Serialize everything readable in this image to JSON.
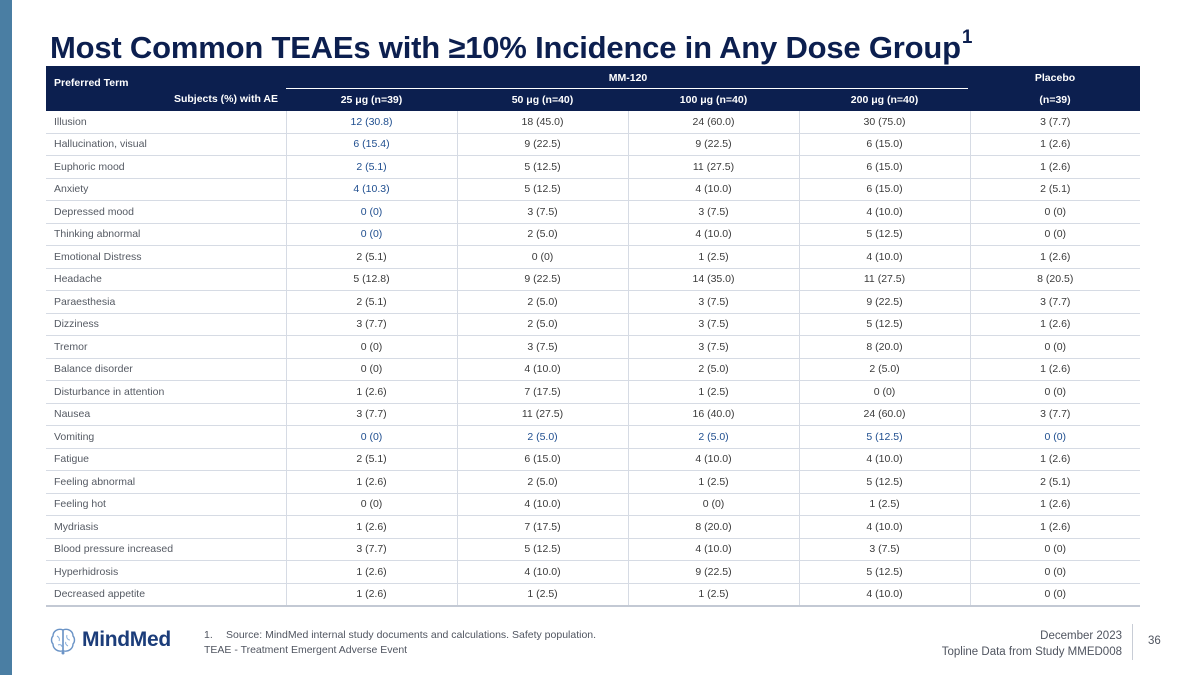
{
  "title": "Most Common TEAEs with ≥10% Incidence in Any Dose Group",
  "title_footnote": "1",
  "table": {
    "corner_label": "Preferred Term",
    "corner_sublabel": "Subjects (%) with AE",
    "group_label": "MM-120",
    "placebo_label": "Placebo",
    "columns": [
      "25 μg (n=39)",
      "50 μg (n=40)",
      "100 μg (n=40)",
      "200 μg (n=40)",
      "(n=39)"
    ],
    "rows": [
      {
        "term": "Illusion",
        "values": [
          "12 (30.8)",
          "18 (45.0)",
          "24 (60.0)",
          "30 (75.0)",
          "3 (7.7)"
        ]
      },
      {
        "term": "Hallucination, visual",
        "values": [
          "6 (15.4)",
          "9 (22.5)",
          "9 (22.5)",
          "6 (15.0)",
          "1 (2.6)"
        ]
      },
      {
        "term": "Euphoric mood",
        "values": [
          "2 (5.1)",
          "5 (12.5)",
          "11 (27.5)",
          "6 (15.0)",
          "1 (2.6)"
        ]
      },
      {
        "term": "Anxiety",
        "values": [
          "4 (10.3)",
          "5 (12.5)",
          "4 (10.0)",
          "6 (15.0)",
          "2 (5.1)"
        ]
      },
      {
        "term": "Depressed mood",
        "values": [
          "0 (0)",
          "3 (7.5)",
          "3 (7.5)",
          "4 (10.0)",
          "0 (0)"
        ]
      },
      {
        "term": "Thinking abnormal",
        "values": [
          "0 (0)",
          "2 (5.0)",
          "4 (10.0)",
          "5 (12.5)",
          "0 (0)"
        ]
      },
      {
        "term": "Emotional Distress",
        "values": [
          "2 (5.1)",
          "0 (0)",
          "1 (2.5)",
          "4 (10.0)",
          "1 (2.6)"
        ]
      },
      {
        "term": "Headache",
        "values": [
          "5 (12.8)",
          "9 (22.5)",
          "14 (35.0)",
          "11 (27.5)",
          "8 (20.5)"
        ]
      },
      {
        "term": "Paraesthesia",
        "values": [
          "2 (5.1)",
          "2 (5.0)",
          "3 (7.5)",
          "9 (22.5)",
          "3 (7.7)"
        ]
      },
      {
        "term": "Dizziness",
        "values": [
          "3 (7.7)",
          "2 (5.0)",
          "3 (7.5)",
          "5 (12.5)",
          "1 (2.6)"
        ]
      },
      {
        "term": "Tremor",
        "values": [
          "0 (0)",
          "3 (7.5)",
          "3 (7.5)",
          "8 (20.0)",
          "0 (0)"
        ]
      },
      {
        "term": "Balance disorder",
        "values": [
          "0 (0)",
          "4 (10.0)",
          "2 (5.0)",
          "2 (5.0)",
          "1 (2.6)"
        ]
      },
      {
        "term": "Disturbance in attention",
        "values": [
          "1 (2.6)",
          "7 (17.5)",
          "1 (2.5)",
          "0 (0)",
          "0 (0)"
        ]
      },
      {
        "term": "Nausea",
        "values": [
          "3 (7.7)",
          "11 (27.5)",
          "16 (40.0)",
          "24 (60.0)",
          "3 (7.7)"
        ]
      },
      {
        "term": "Vomiting",
        "values": [
          "0 (0)",
          "2 (5.0)",
          "2 (5.0)",
          "5 (12.5)",
          "0 (0)"
        ]
      },
      {
        "term": "Fatigue",
        "values": [
          "2 (5.1)",
          "6 (15.0)",
          "4 (10.0)",
          "4 (10.0)",
          "1 (2.6)"
        ]
      },
      {
        "term": "Feeling abnormal",
        "values": [
          "1 (2.6)",
          "2 (5.0)",
          "1 (2.5)",
          "5 (12.5)",
          "2 (5.1)"
        ]
      },
      {
        "term": "Feeling hot",
        "values": [
          "0 (0)",
          "4 (10.0)",
          "0 (0)",
          "1 (2.5)",
          "1 (2.6)"
        ]
      },
      {
        "term": "Mydriasis",
        "values": [
          "1 (2.6)",
          "7 (17.5)",
          "8 (20.0)",
          "4 (10.0)",
          "1 (2.6)"
        ]
      },
      {
        "term": "Blood pressure increased",
        "values": [
          "3 (7.7)",
          "5 (12.5)",
          "4 (10.0)",
          "3 (7.5)",
          "0 (0)"
        ]
      },
      {
        "term": "Hyperhidrosis",
        "values": [
          "1 (2.6)",
          "4 (10.0)",
          "9 (22.5)",
          "5 (12.5)",
          "0 (0)"
        ]
      },
      {
        "term": "Decreased appetite",
        "values": [
          "1 (2.6)",
          "1 (2.5)",
          "1 (2.5)",
          "4 (10.0)",
          "0 (0)"
        ]
      }
    ]
  },
  "footnotes": {
    "note1_number": "1.",
    "note1_text": "Source: MindMed internal study documents and calculations. Safety population.",
    "note2_text": "TEAE - Treatment Emergent Adverse Event"
  },
  "footer": {
    "logo_text": "MindMed",
    "date": "December 2023",
    "subtitle": "Topline Data from Study MMED008",
    "page_number": "36"
  },
  "colors": {
    "header_navy": "#0c1f4f",
    "accent_bar": "#4a7ea3",
    "highlight_blue": "#1f4e8f"
  }
}
